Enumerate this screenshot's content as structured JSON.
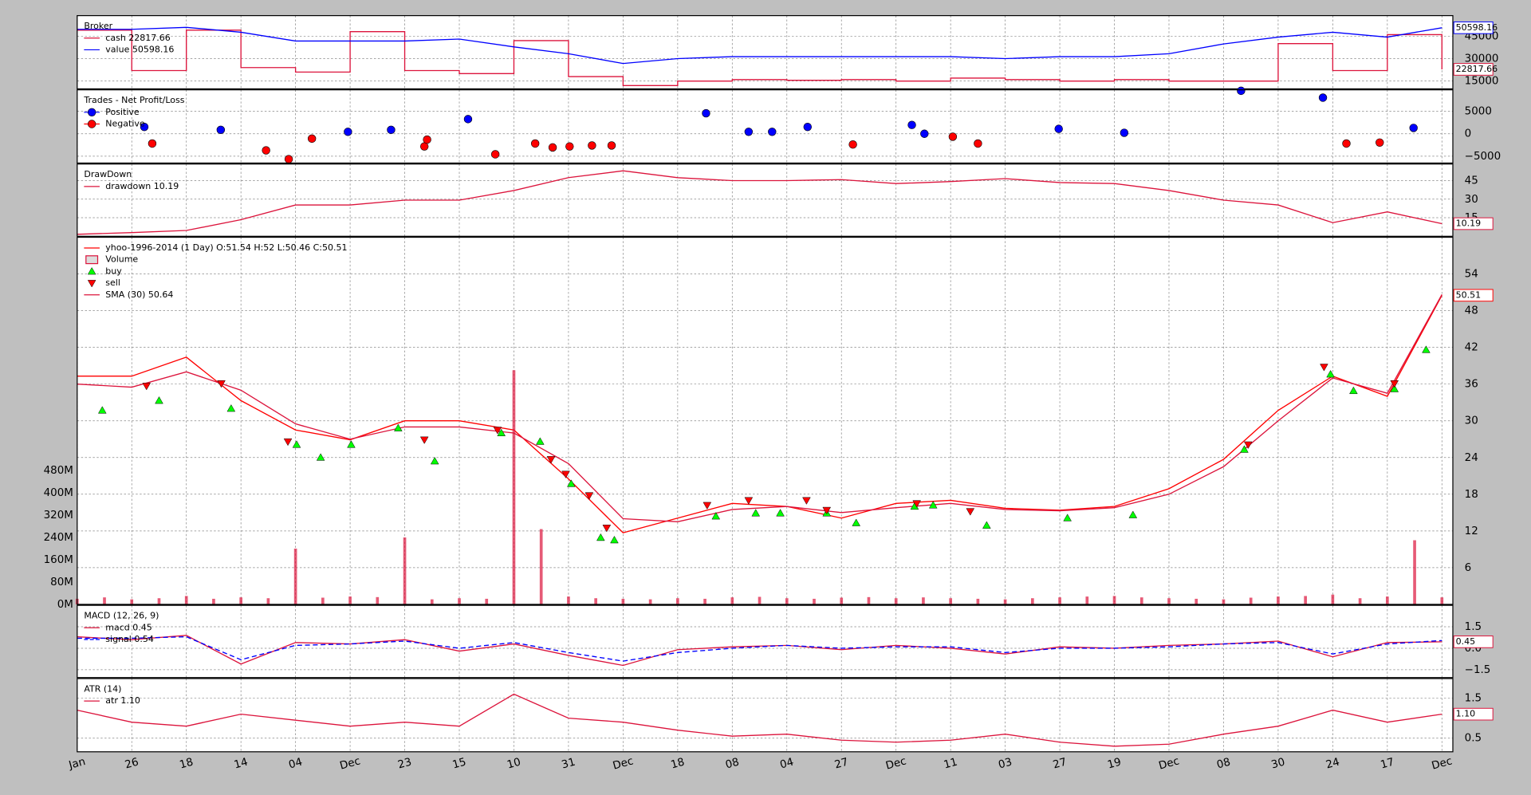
{
  "chart_data": [
    {
      "type": "line",
      "title": "Broker",
      "x": [
        0,
        10,
        20,
        30,
        40,
        50,
        60,
        70,
        80,
        90,
        100,
        110,
        120,
        130,
        140,
        150,
        160,
        170,
        180,
        190,
        200,
        210,
        220,
        230,
        240,
        250
      ],
      "xlim": [
        0,
        252
      ],
      "ylim": [
        9800,
        58700
      ],
      "yticks": [
        15000,
        30000,
        45000
      ],
      "series": [
        {
          "name": "cash 22817.66",
          "color": "#dc143c",
          "drawstyle": "steps",
          "last_label": "22817.66",
          "values": [
            49000,
            22000,
            49000,
            24000,
            21000,
            48000,
            22000,
            20000,
            42000,
            18000,
            12000,
            15000,
            16000,
            15500,
            16000,
            15000,
            17000,
            16000,
            15000,
            16000,
            15000,
            15000,
            40000,
            22000,
            46000,
            22817.66
          ]
        },
        {
          "name": "value 50598.16",
          "color": "#0000ff",
          "last_label": "50598.16",
          "values": [
            49565,
            49565,
            50870,
            47610,
            41740,
            41740,
            41740,
            43040,
            37830,
            33260,
            26740,
            30000,
            31300,
            31300,
            31300,
            31300,
            31300,
            30000,
            31300,
            31300,
            33260,
            39780,
            44350,
            47610,
            44350,
            50598.16
          ]
        }
      ]
    },
    {
      "type": "scatter",
      "title": "Trades - Net Profit/Loss",
      "xlim": [
        0,
        252
      ],
      "ylim": [
        -6522,
        9783
      ],
      "yticks": [
        {
          "value": -5000,
          "label": "−5000"
        },
        0,
        5000
      ],
      "series": [
        {
          "name": "Positive",
          "color": "#0000ff",
          "x": [
            12.3,
            26.3,
            49.6,
            57.5,
            71.6,
            115.2,
            123,
            127.3,
            133.8,
            152.9,
            155.2,
            179.8,
            191.8,
            213.2,
            228.2,
            244.8
          ],
          "values": [
            1522,
            870,
            435,
            870,
            3261,
            4565,
            435,
            435,
            1522,
            1957,
            0,
            1087,
            217,
            9565,
            8043,
            1304
          ]
        },
        {
          "name": "Negative",
          "color": "#ff0000",
          "x": [
            13.75,
            34.6,
            38.75,
            43,
            63.6,
            64.1,
            76.6,
            83.9,
            87.1,
            90.2,
            94.3,
            97.9,
            142.1,
            160.4,
            165,
            232.5,
            238.6
          ],
          "values": [
            -2174,
            -3696,
            -5652,
            -1087,
            -2826,
            -1304,
            -4565,
            -2174,
            -3043,
            -2826,
            -2609,
            -2609,
            -2391,
            -652,
            -2174,
            -2174,
            -1957
          ]
        }
      ]
    },
    {
      "type": "line",
      "title": "DrawDown",
      "x": [
        0,
        10,
        20,
        30,
        40,
        50,
        60,
        70,
        80,
        90,
        100,
        110,
        120,
        130,
        140,
        150,
        160,
        170,
        180,
        190,
        200,
        210,
        220,
        230,
        240,
        250
      ],
      "xlim": [
        0,
        252
      ],
      "ylim": [
        0,
        58.4
      ],
      "yticks": [
        15,
        30,
        45
      ],
      "series": [
        {
          "name": "drawdown 10.19",
          "color": "#dc143c",
          "last_label": "10.19",
          "values": [
            1.6,
            3,
            4.7,
            13.4,
            25.3,
            25.3,
            29.2,
            29.2,
            37,
            47.4,
            52.9,
            47.4,
            45,
            45,
            45.8,
            42.6,
            44.2,
            46.6,
            43.4,
            42.6,
            37,
            29.2,
            25.3,
            11,
            19.7,
            10.19
          ]
        }
      ]
    },
    {
      "type": "price",
      "x": [
        0,
        10,
        20,
        30,
        40,
        50,
        60,
        70,
        80,
        90,
        100,
        110,
        120,
        130,
        140,
        150,
        160,
        170,
        180,
        190,
        200,
        210,
        220,
        230,
        240,
        250
      ],
      "xlim": [
        0,
        252
      ],
      "ylim": [
        0,
        60
      ],
      "yticks": [
        6,
        12,
        18,
        24,
        30,
        36,
        42,
        48,
        54
      ],
      "series": [
        {
          "name": "yhoo-1996-2014 (1 Day) O:51.54 H:52 L:50.46 C:50.51",
          "color": "#ff0000",
          "last_label": "50.51",
          "values": [
            37.3,
            37.3,
            40.4,
            33.3,
            28.5,
            26.9,
            30,
            30,
            28.5,
            20.5,
            11.7,
            14.1,
            16.5,
            16,
            14.1,
            16.5,
            17,
            15.7,
            15.4,
            16,
            18.9,
            23.7,
            31.7,
            37.3,
            34,
            50.51
          ]
        },
        {
          "name": "SMA (30) 50.64",
          "color": "#dc143c",
          "values": [
            36,
            35.5,
            38,
            35,
            29.5,
            27,
            29,
            29,
            28,
            23,
            14,
            13.5,
            15.5,
            16,
            15,
            15.8,
            16.5,
            15.5,
            15.3,
            15.8,
            18,
            22.5,
            30,
            37,
            34.5,
            50.64
          ]
        }
      ],
      "volume": {
        "name": "Volume",
        "color": "#dc143c",
        "x": [
          0,
          5,
          10,
          15,
          20,
          25,
          30,
          35,
          40,
          45,
          50,
          55,
          60,
          65,
          70,
          75,
          80,
          85,
          90,
          95,
          100,
          105,
          110,
          115,
          120,
          125,
          130,
          135,
          140,
          145,
          150,
          155,
          160,
          165,
          170,
          175,
          180,
          185,
          190,
          195,
          200,
          205,
          210,
          215,
          220,
          225,
          230,
          235,
          240,
          245,
          250
        ],
        "values": [
          20000000,
          25000000,
          18000000,
          22000000,
          30000000,
          20000000,
          25000000,
          22000000,
          200000000,
          24000000,
          28000000,
          26000000,
          240000000,
          18000000,
          22000000,
          20000000,
          840000000,
          270000000,
          28000000,
          22000000,
          20000000,
          18000000,
          22000000,
          20000000,
          25000000,
          27000000,
          22000000,
          20000000,
          24000000,
          26000000,
          22000000,
          25000000,
          22000000,
          20000000,
          18000000,
          22000000,
          25000000,
          28000000,
          30000000,
          25000000,
          22000000,
          20000000,
          18000000,
          24000000,
          28000000,
          30000000,
          35000000,
          22000000,
          28000000,
          230000000,
          25000000
        ],
        "ylim": [
          0,
          1317000000
        ],
        "yticks": [
          {
            "value": 0,
            "label": "0M"
          },
          {
            "value": 80000000,
            "label": "80M"
          },
          {
            "value": 160000000,
            "label": "160M"
          },
          {
            "value": 240000000,
            "label": "240M"
          },
          {
            "value": 320000000,
            "label": "320M"
          },
          {
            "value": 400000000,
            "label": "400M"
          },
          {
            "value": 480000000,
            "label": "480M"
          }
        ]
      },
      "markers": [
        {
          "name": "buy",
          "color": "#00ff00",
          "shape": "up",
          "x": [
            4.6,
            15,
            28.2,
            40.2,
            44.6,
            50.2,
            58.8,
            65.5,
            77.7,
            84.8,
            90.5,
            95.9,
            98.4,
            117,
            124.3,
            128.8,
            137.3,
            142.7,
            153.4,
            156.8,
            166.6,
            181.4,
            193.4,
            213.8,
            229.6,
            233.8,
            241.3,
            247.1
          ],
          "values": [
            31.7,
            33.3,
            32,
            26.1,
            24,
            26.1,
            28.8,
            23.4,
            28,
            26.6,
            19.7,
            10.9,
            10.5,
            14.4,
            14.9,
            14.9,
            14.9,
            13.3,
            16,
            16.2,
            12.9,
            14.1,
            14.6,
            25.3,
            37.6,
            34.9,
            35.2,
            41.6
          ]
        },
        {
          "name": "sell",
          "color": "#ff0000",
          "shape": "down",
          "x": [
            12.7,
            26.4,
            38.6,
            63.6,
            77,
            86.8,
            89.5,
            93.8,
            97,
            115.4,
            123,
            133.6,
            137.3,
            153.8,
            163.6,
            214.5,
            228.4,
            241.3
          ],
          "values": [
            35.7,
            36.1,
            26.6,
            26.9,
            28.5,
            23.7,
            21.3,
            17.8,
            12.5,
            16.2,
            17,
            17,
            15.4,
            16.5,
            15.2,
            26.1,
            38.8,
            36.1
          ]
        }
      ]
    },
    {
      "type": "line",
      "title": "MACD (12, 26, 9)",
      "x": [
        0,
        10,
        20,
        30,
        40,
        50,
        60,
        70,
        80,
        90,
        100,
        110,
        120,
        130,
        140,
        150,
        160,
        170,
        180,
        190,
        200,
        210,
        220,
        230,
        240,
        250
      ],
      "xlim": [
        0,
        252
      ],
      "ylim": [
        -2.05,
        3.0
      ],
      "yticks": [
        {
          "value": -1.5,
          "label": "−1.5"
        },
        {
          "value": 0,
          "label": "0.0"
        },
        1.5
      ],
      "series": [
        {
          "name": "macd 0.45",
          "color": "#dc143c",
          "last_label": "0.45",
          "values": [
            0.8,
            0.6,
            0.9,
            -1.1,
            0.4,
            0.3,
            0.6,
            -0.2,
            0.3,
            -0.5,
            -1.2,
            -0.1,
            0.1,
            0.2,
            -0.1,
            0.2,
            0.0,
            -0.4,
            0.1,
            0.0,
            0.2,
            0.3,
            0.5,
            -0.6,
            0.4,
            0.45
          ]
        },
        {
          "name": "signal 0.54",
          "color": "#0000ff",
          "linestyle": "dashed",
          "values": [
            0.7,
            0.7,
            0.8,
            -0.8,
            0.2,
            0.3,
            0.5,
            0.0,
            0.4,
            -0.3,
            -0.9,
            -0.3,
            0.0,
            0.2,
            0.0,
            0.1,
            0.1,
            -0.3,
            0.0,
            0.0,
            0.1,
            0.3,
            0.4,
            -0.4,
            0.3,
            0.54
          ]
        }
      ]
    },
    {
      "type": "line",
      "title": "ATR (14)",
      "x": [
        0,
        10,
        20,
        30,
        40,
        50,
        60,
        70,
        80,
        90,
        100,
        110,
        120,
        130,
        140,
        150,
        160,
        170,
        180,
        190,
        200,
        210,
        220,
        230,
        240,
        250
      ],
      "xlim": [
        0,
        252
      ],
      "ylim": [
        0.16,
        1.99
      ],
      "yticks": [
        0.5,
        1.5
      ],
      "xticks": [
        {
          "value": 0,
          "label": "Jan"
        },
        {
          "value": 10,
          "label": "26"
        },
        {
          "value": 20,
          "label": "18"
        },
        {
          "value": 30,
          "label": "14"
        },
        {
          "value": 40,
          "label": "04"
        },
        {
          "value": 50,
          "label": "Dec"
        },
        {
          "value": 60,
          "label": "23"
        },
        {
          "value": 70,
          "label": "15"
        },
        {
          "value": 80,
          "label": "10"
        },
        {
          "value": 90,
          "label": "31"
        },
        {
          "value": 100,
          "label": "Dec"
        },
        {
          "value": 110,
          "label": "18"
        },
        {
          "value": 120,
          "label": "08"
        },
        {
          "value": 130,
          "label": "04"
        },
        {
          "value": 140,
          "label": "27"
        },
        {
          "value": 150,
          "label": "Dec"
        },
        {
          "value": 160,
          "label": "11"
        },
        {
          "value": 170,
          "label": "03"
        },
        {
          "value": 180,
          "label": "27"
        },
        {
          "value": 190,
          "label": "19"
        },
        {
          "value": 200,
          "label": "Dec"
        },
        {
          "value": 210,
          "label": "08"
        },
        {
          "value": 220,
          "label": "30"
        },
        {
          "value": 230,
          "label": "24"
        },
        {
          "value": 240,
          "label": "17"
        },
        {
          "value": 250,
          "label": "Dec"
        }
      ],
      "series": [
        {
          "name": "atr 1.10",
          "color": "#dc143c",
          "last_label": "1.10",
          "values": [
            1.2,
            0.9,
            0.8,
            1.1,
            0.95,
            0.8,
            0.9,
            0.8,
            1.6,
            1.0,
            0.9,
            0.7,
            0.55,
            0.6,
            0.45,
            0.4,
            0.45,
            0.6,
            0.4,
            0.3,
            0.35,
            0.6,
            0.8,
            1.2,
            0.9,
            1.1
          ]
        }
      ]
    }
  ]
}
